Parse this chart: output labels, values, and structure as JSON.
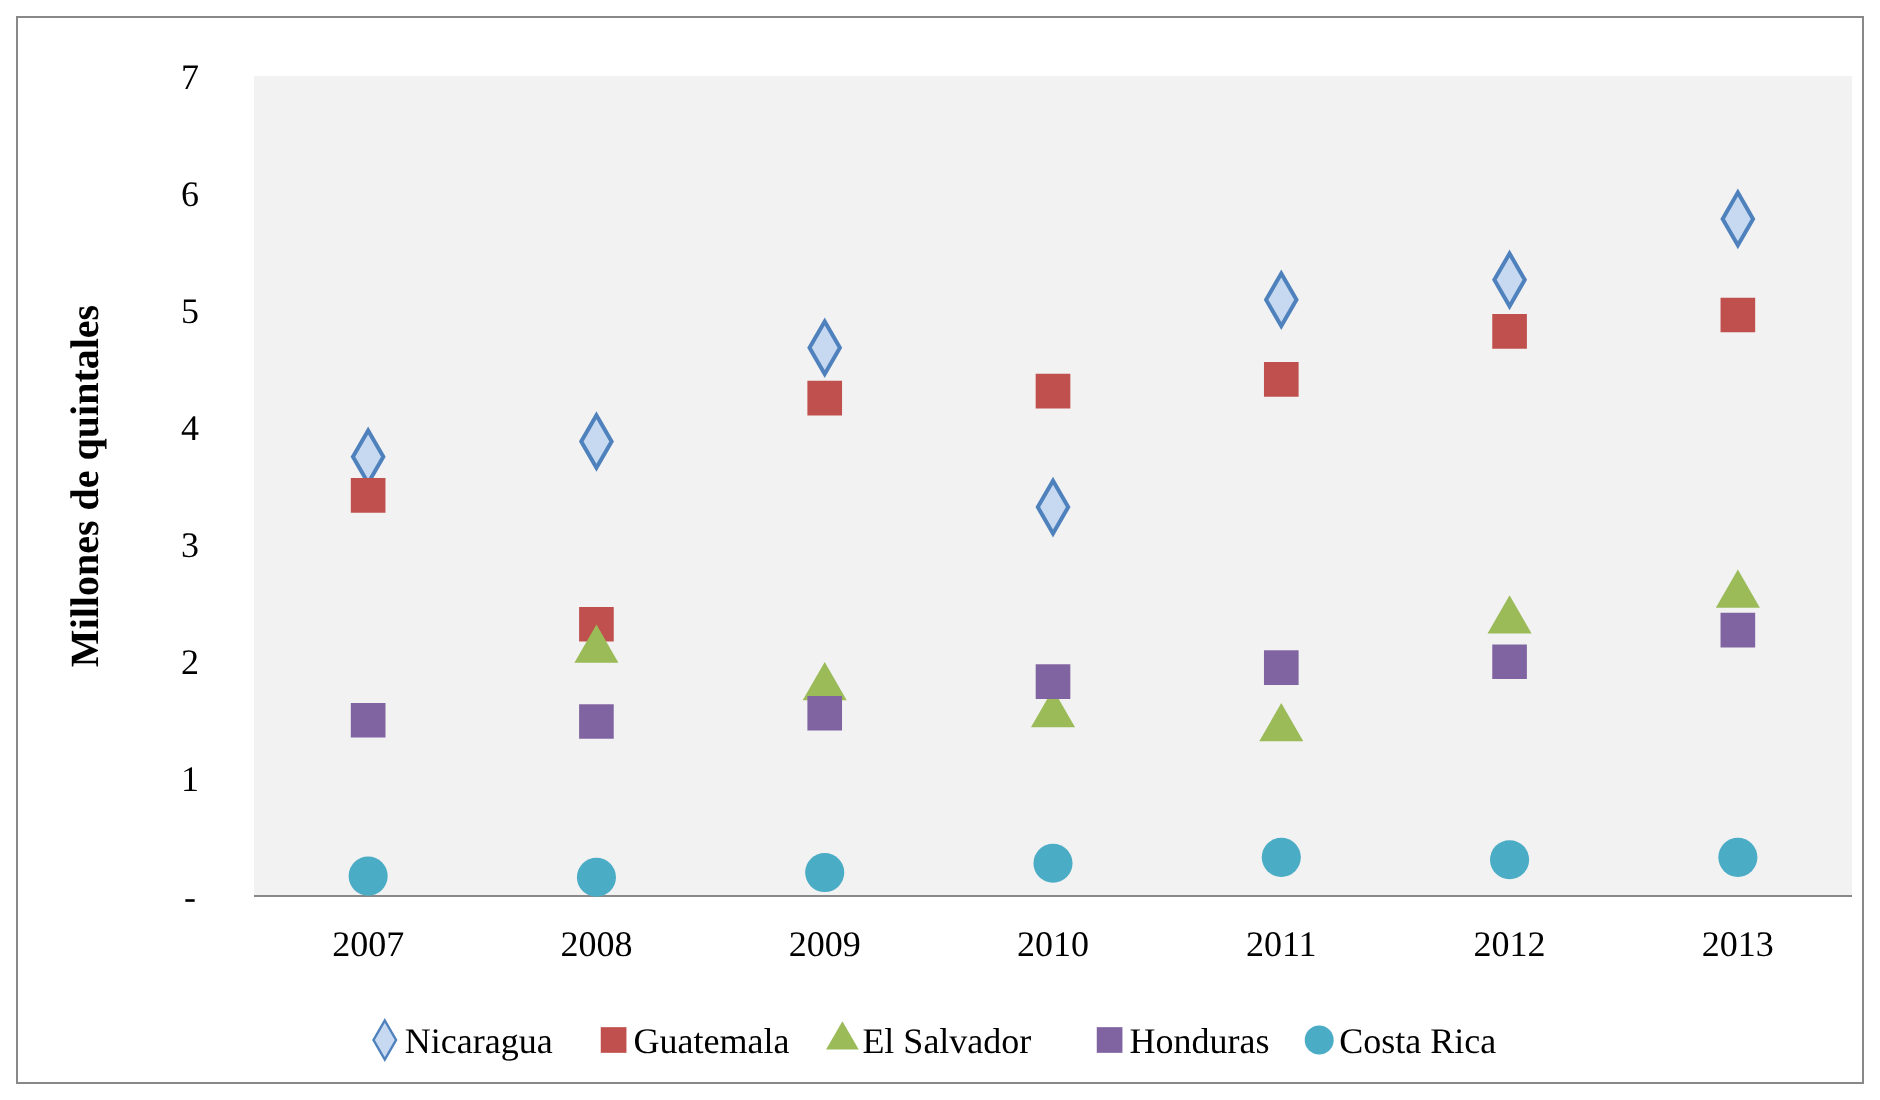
{
  "chart_data": {
    "type": "scatter",
    "ylabel": "Millones de quintales",
    "categories": [
      "2007",
      "2008",
      "2009",
      "2010",
      "2011",
      "2012",
      "2013"
    ],
    "ylim": [
      0,
      7
    ],
    "yticks": [
      {
        "value": 0,
        "label": "-"
      },
      1,
      2,
      3,
      4,
      5,
      6,
      7
    ],
    "grid": false,
    "legend": "bottom",
    "series": [
      {
        "name": "Nicaragua",
        "color": "#c6d9f1",
        "marker": "diamond",
        "values": [
          3.75,
          3.88,
          4.68,
          3.32,
          5.09,
          5.26,
          5.78
        ]
      },
      {
        "name": "Guatemala",
        "color": "#c0504d",
        "marker": "square",
        "values": [
          3.42,
          2.32,
          4.25,
          4.31,
          4.41,
          4.82,
          4.96
        ]
      },
      {
        "name": "El Salvador",
        "color": "#9bbb59",
        "marker": "triangle",
        "values": [
          null,
          2.1,
          1.78,
          1.55,
          1.43,
          2.35,
          2.57
        ]
      },
      {
        "name": "Honduras",
        "color": "#8064a2",
        "marker": "square",
        "values": [
          1.5,
          1.49,
          1.56,
          1.83,
          1.95,
          2.0,
          2.27
        ]
      },
      {
        "name": "Costa Rica",
        "color": "#4bacc6",
        "marker": "circle",
        "values": [
          0.17,
          0.16,
          0.2,
          0.28,
          0.33,
          0.31,
          0.33
        ]
      }
    ]
  }
}
